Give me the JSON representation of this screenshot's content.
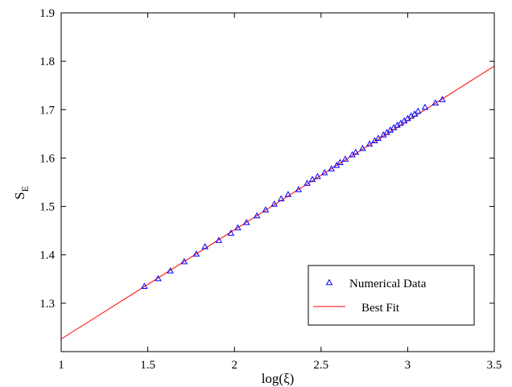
{
  "chart_data": {
    "type": "scatter",
    "xlabel": "log(ξ)",
    "ylabel": "S",
    "ylabel_sub": "E",
    "xlim": [
      1,
      3.5
    ],
    "ylim": [
      1.2,
      1.9
    ],
    "xticks": [
      1,
      1.5,
      2,
      2.5,
      3,
      3.5
    ],
    "yticks": [
      1.3,
      1.4,
      1.5,
      1.6,
      1.7,
      1.8,
      1.9
    ],
    "xtick_labels": [
      "1",
      "1.5",
      "2",
      "2.5",
      "3",
      "3.5"
    ],
    "ytick_labels": [
      "1.3",
      "1.4",
      "1.5",
      "1.6",
      "1.7",
      "1.8",
      "1.9"
    ],
    "grid": false,
    "legend_position": "bottom-right",
    "colors": {
      "data": "#0000ff",
      "fit": "#ff0000",
      "axis": "#000000"
    },
    "series": [
      {
        "name": "Numerical Data",
        "kind": "scatter",
        "marker": "triangle",
        "x": [
          1.48,
          1.56,
          1.63,
          1.71,
          1.78,
          1.83,
          1.91,
          1.98,
          2.02,
          2.07,
          2.13,
          2.18,
          2.23,
          2.27,
          2.31,
          2.37,
          2.42,
          2.45,
          2.48,
          2.52,
          2.56,
          2.59,
          2.61,
          2.64,
          2.68,
          2.7,
          2.74,
          2.78,
          2.81,
          2.83,
          2.86,
          2.88,
          2.9,
          2.92,
          2.94,
          2.96,
          2.98,
          3.0,
          3.02,
          3.04,
          3.06,
          3.1,
          3.16,
          3.2
        ],
        "y": [
          1.335,
          1.351,
          1.367,
          1.386,
          1.402,
          1.417,
          1.43,
          1.445,
          1.456,
          1.467,
          1.481,
          1.493,
          1.505,
          1.516,
          1.525,
          1.535,
          1.548,
          1.556,
          1.562,
          1.57,
          1.578,
          1.585,
          1.591,
          1.598,
          1.607,
          1.612,
          1.62,
          1.629,
          1.636,
          1.641,
          1.648,
          1.653,
          1.658,
          1.663,
          1.668,
          1.672,
          1.677,
          1.682,
          1.687,
          1.691,
          1.697,
          1.705,
          1.714,
          1.721
        ]
      },
      {
        "name": "Best Fit",
        "kind": "line",
        "x": [
          1,
          3.5
        ],
        "y": [
          1.226,
          1.79
        ]
      }
    ]
  }
}
